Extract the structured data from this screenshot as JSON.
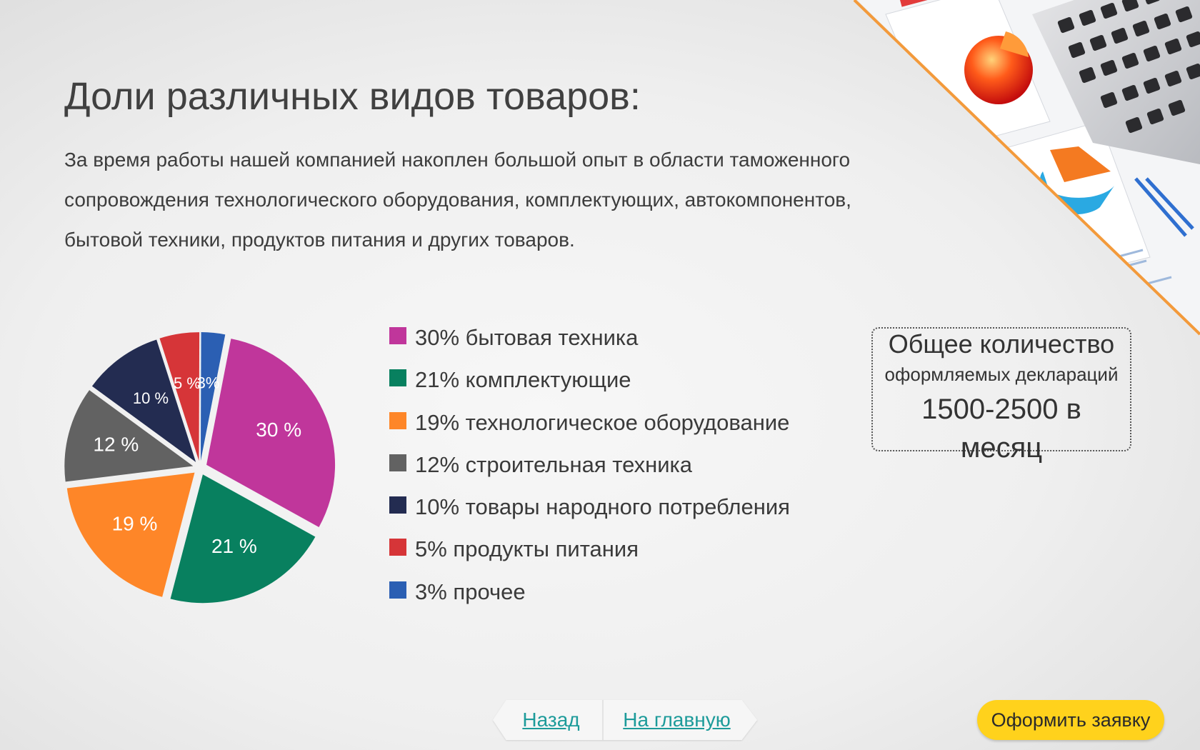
{
  "page": {
    "title": "Доли различных видов товаров:",
    "intro_lines": [
      "За время работы нашей компанией накоплен большой опыт в области таможенного",
      "сопровождения технологического оборудования, комплектующих, автокомпонентов,",
      "бытовой техники, продуктов питания и других товаров."
    ]
  },
  "chart_data": {
    "type": "pie",
    "slices": [
      {
        "value": 30,
        "label": "30 %",
        "color": "#c0369b"
      },
      {
        "value": 21,
        "label": "21 %",
        "color": "#08805f"
      },
      {
        "value": 19,
        "label": "19 %",
        "color": "#fe8628"
      },
      {
        "value": 12,
        "label": "12 %",
        "color": "#626262"
      },
      {
        "value": 10,
        "label": "10 %",
        "color": "#232c51"
      },
      {
        "value": 5,
        "label": "5 %",
        "color": "#d63538"
      },
      {
        "value": 3,
        "label": "3%",
        "color": "#2b5fb3"
      }
    ],
    "legend": [
      {
        "text": "30% бытовая техника",
        "color": "#c0369b"
      },
      {
        "text": "21% комплектующие",
        "color": "#08805f"
      },
      {
        "text": "19% технологическое оборудование",
        "color": "#fe8628"
      },
      {
        "text": "12% строительная техника",
        "color": "#626262"
      },
      {
        "text": "10% товары народного потребления",
        "color": "#232c51"
      },
      {
        "text": "5% продукты питания",
        "color": "#d63538"
      },
      {
        "text": "3% прочее",
        "color": "#2b5fb3"
      }
    ],
    "legend_position": "right"
  },
  "stats": {
    "heading": "Общее количество",
    "subheading": "оформляемых деклараций",
    "value_line1": "1500-2500 в",
    "value_line2": "месяц"
  },
  "nav": {
    "back_label": "Назад",
    "home_label": "На главную"
  },
  "cta": {
    "order_label": "Оформить заявку"
  },
  "colors": {
    "accent_orange": "#f39a3b",
    "button_yellow": "#ffd21c",
    "link_teal": "#1d9b9a"
  },
  "decor": {
    "corner_image_icons": [
      "laptop-icon",
      "pie-chart-icon",
      "report-sheet-icon"
    ]
  }
}
